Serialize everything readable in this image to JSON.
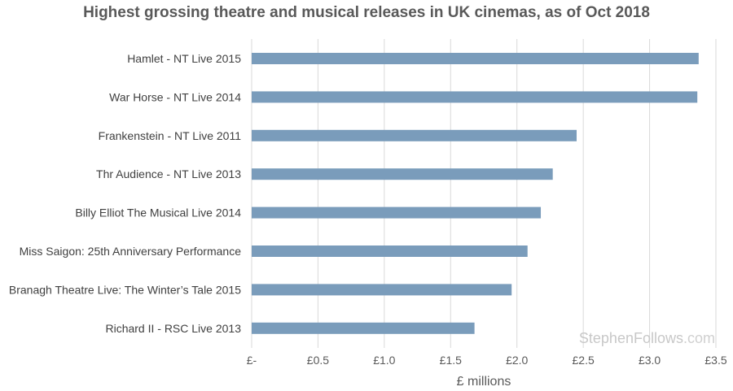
{
  "chart_data": {
    "type": "bar",
    "orientation": "horizontal",
    "title": "Highest grossing theatre and musical releases in UK cinemas, as of Oct 2018",
    "xlabel": "£ millions",
    "ylabel": "",
    "xlim": [
      0,
      3.5
    ],
    "x_ticks": [
      0,
      0.5,
      1.0,
      1.5,
      2.0,
      2.5,
      3.0,
      3.5
    ],
    "x_tick_labels": [
      "£-",
      "£0.5",
      "£1.0",
      "£1.5",
      "£2.0",
      "£2.5",
      "£3.0",
      "£3.5"
    ],
    "grid": "vertical",
    "legend": "none",
    "bar_color": "#7a9cbb",
    "categories": [
      "Hamlet - NT Live 2015",
      "War Horse - NT Live 2014",
      "Frankenstein - NT Live 2011",
      "Thr Audience - NT Live 2013",
      "Billy Elliot The Musical Live 2014",
      "Miss Saigon: 25th Anniversary Performance",
      "Branagh Theatre Live: The Winter’s Tale 2015",
      "Richard II - RSC Live 2013"
    ],
    "values": [
      3.37,
      3.36,
      2.45,
      2.27,
      2.18,
      2.08,
      1.96,
      1.68
    ]
  },
  "watermark": {
    "brand": "StephenFollows",
    "suffix": ".com"
  }
}
